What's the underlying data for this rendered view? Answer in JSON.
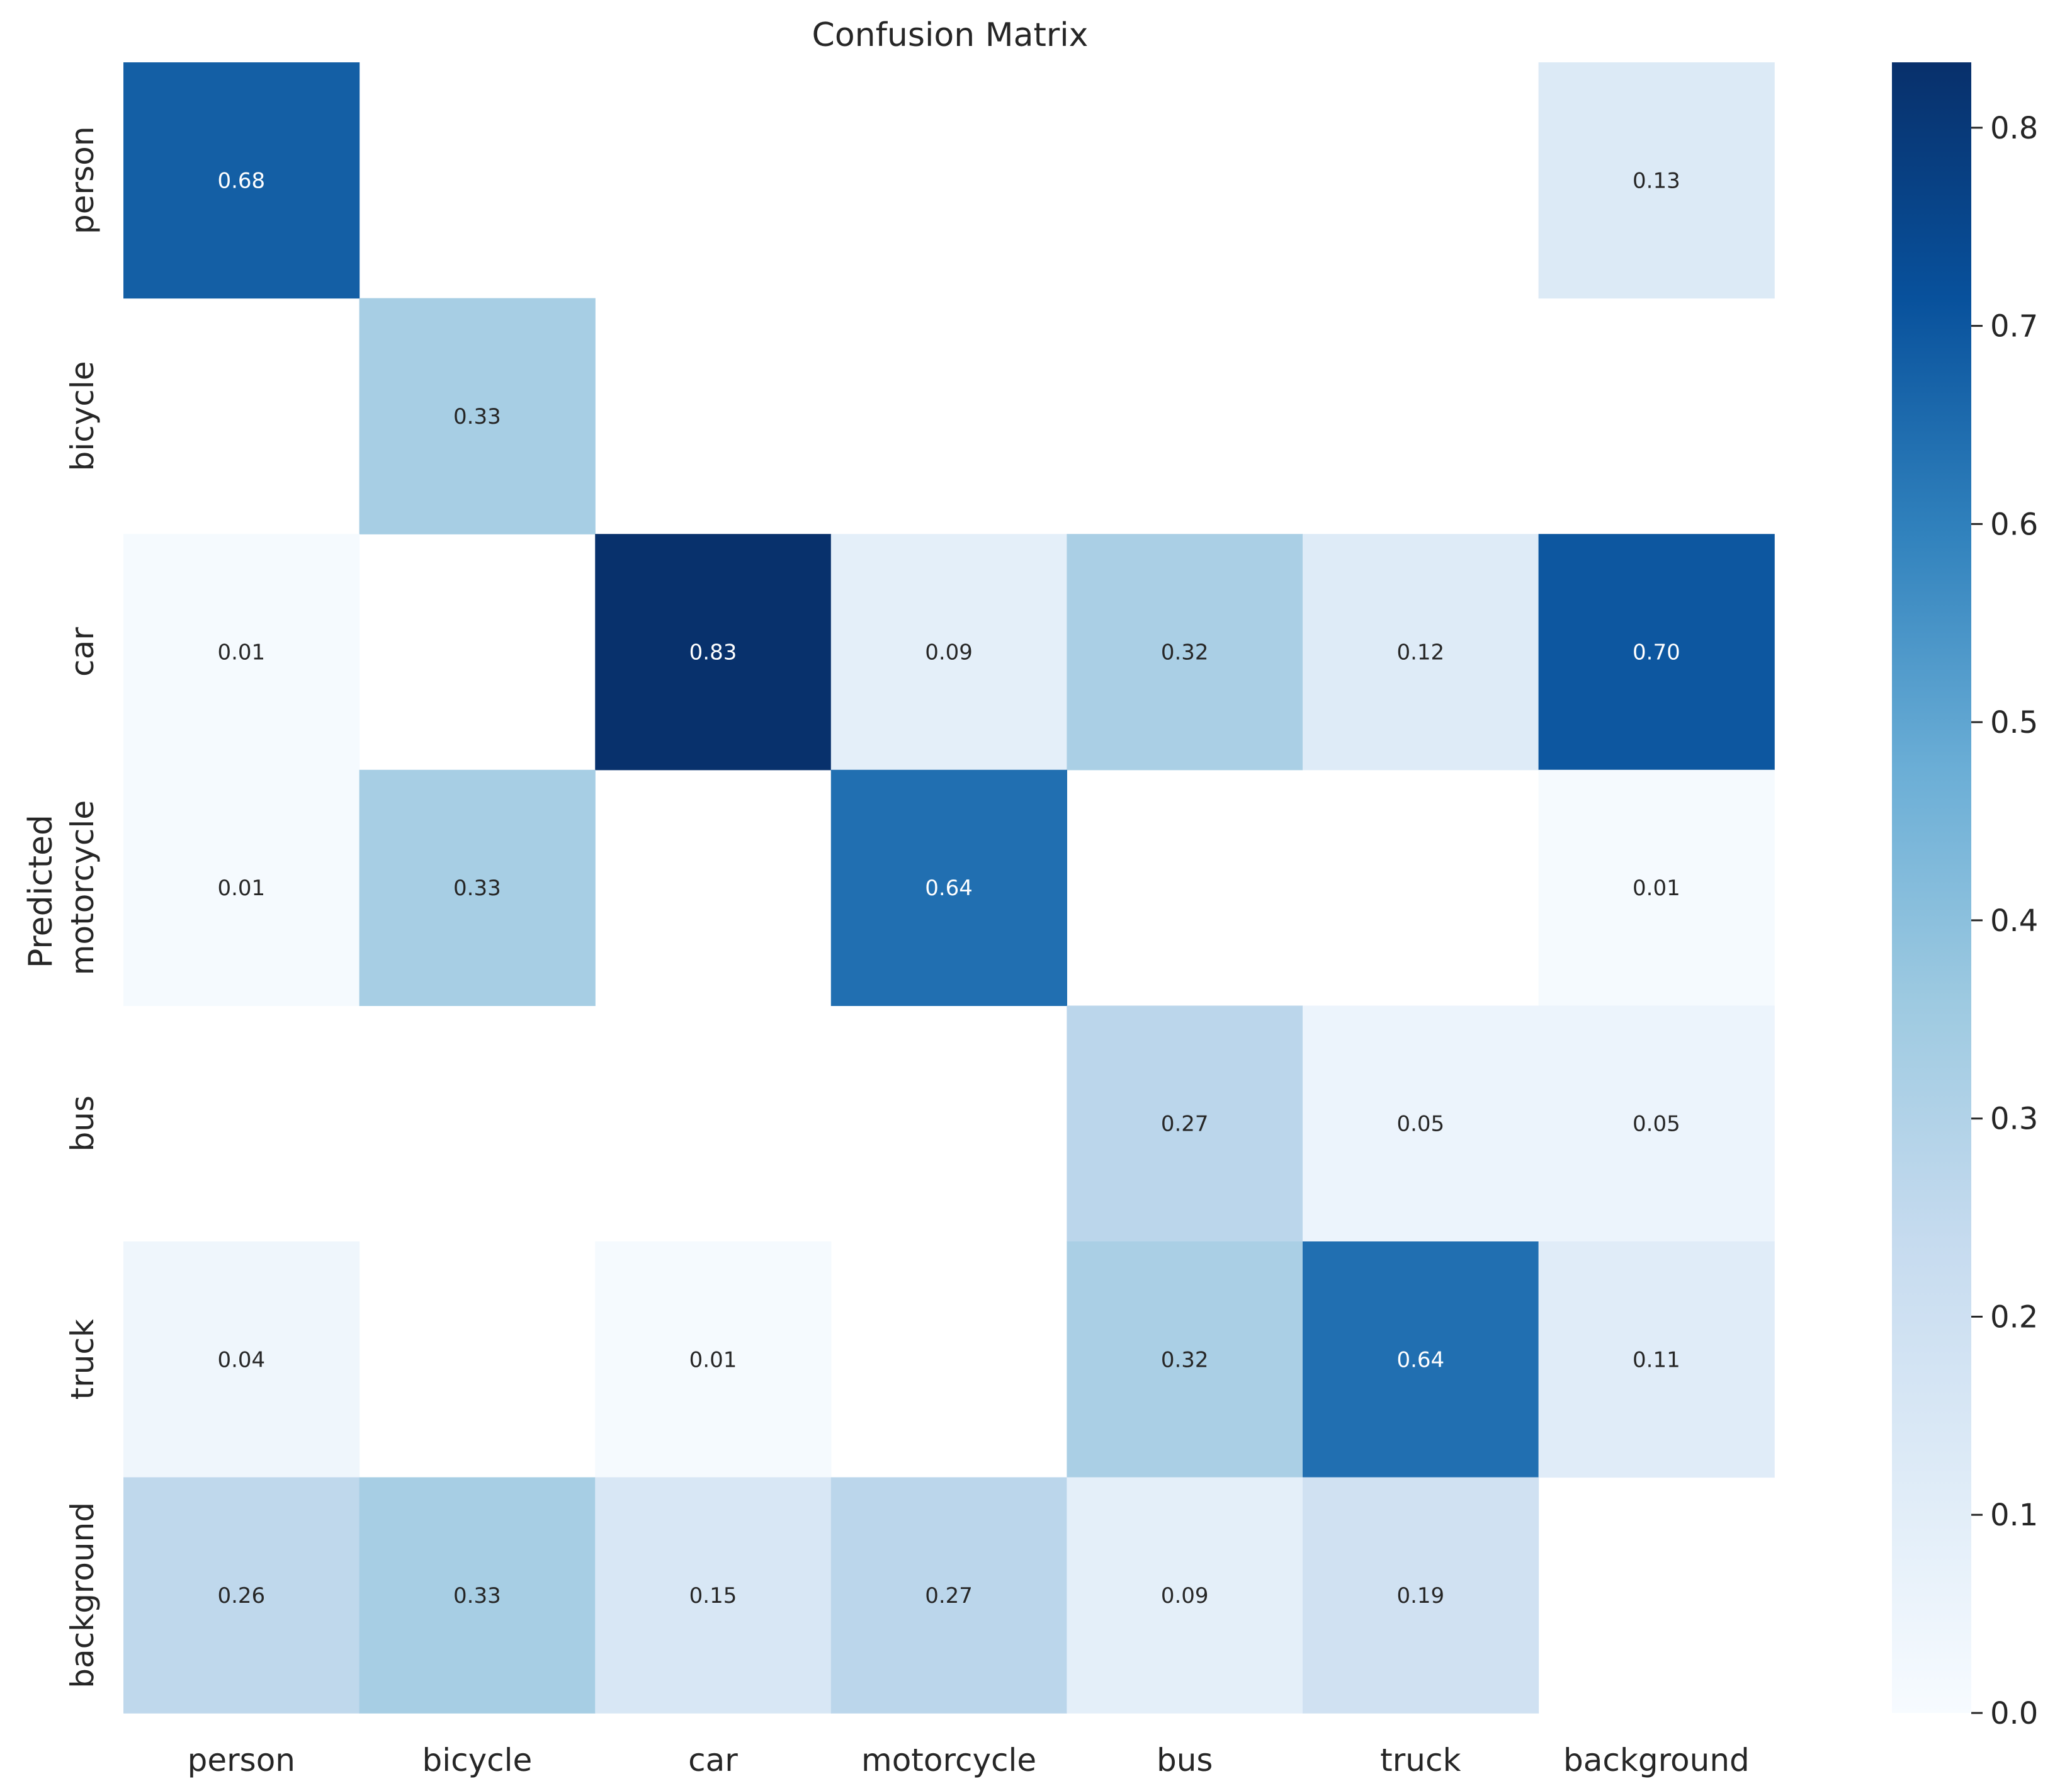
{
  "colors": {
    "scale": [
      "#f7fbff",
      "#deebf7",
      "#c6dbef",
      "#9ecae1",
      "#6baed6",
      "#3182bd",
      "#08519c",
      "#08306b"
    ],
    "text_dark": "#262626",
    "text_light": "#ffffff"
  },
  "chart_data": {
    "type": "heatmap",
    "title": "Confusion Matrix",
    "xlabel": "",
    "ylabel": "Predicted",
    "x_categories": [
      "person",
      "bicycle",
      "car",
      "motorcycle",
      "bus",
      "truck",
      "background"
    ],
    "y_categories": [
      "person",
      "bicycle",
      "car",
      "motorcycle",
      "bus",
      "truck",
      "background"
    ],
    "values": [
      [
        0.68,
        null,
        null,
        null,
        null,
        null,
        0.13
      ],
      [
        null,
        0.33,
        null,
        null,
        null,
        null,
        null
      ],
      [
        0.01,
        null,
        0.83,
        0.09,
        0.32,
        0.12,
        0.7
      ],
      [
        0.01,
        0.33,
        null,
        0.64,
        null,
        null,
        0.01
      ],
      [
        null,
        null,
        null,
        null,
        0.27,
        0.05,
        0.05
      ],
      [
        0.04,
        null,
        0.01,
        null,
        0.32,
        0.64,
        0.11
      ],
      [
        0.26,
        0.33,
        0.15,
        0.27,
        0.09,
        0.19,
        null
      ]
    ],
    "value_format": "0.00",
    "colorbar": {
      "min": 0.0,
      "max": 0.833,
      "ticks": [
        0.0,
        0.1,
        0.2,
        0.3,
        0.4,
        0.5,
        0.6,
        0.7,
        0.8
      ],
      "tick_labels": [
        "0.0",
        "0.1",
        "0.2",
        "0.3",
        "0.4",
        "0.5",
        "0.6",
        "0.7",
        "0.8"
      ]
    }
  }
}
